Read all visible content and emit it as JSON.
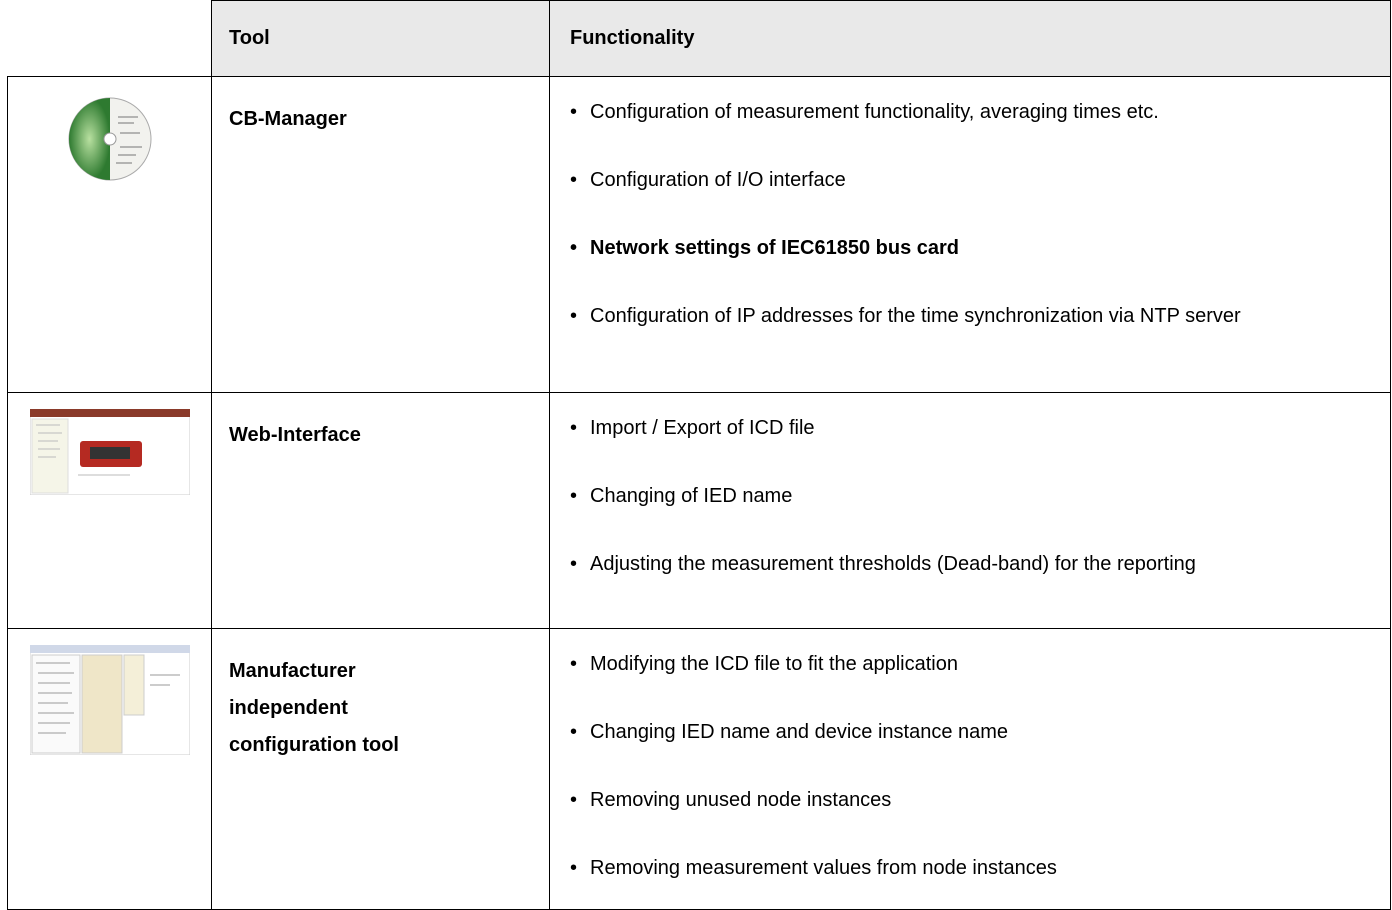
{
  "header": {
    "columns": [
      "Tool",
      "Functionality"
    ]
  },
  "rows": [
    {
      "tool": "CB-Manager",
      "items": [
        "Configuration of measurement functionality, averaging times etc.",
        "Configuration of I/O interface",
        "Network settings of IEC61850 bus card",
        "Configuration of IP addresses for the time synchronization via NTP server"
      ]
    },
    {
      "tool": "Web-Interface",
      "items": [
        "Import / Export of ICD file",
        "Changing of IED name",
        "Adjusting the measurement thresholds (Dead-band) for the reporting"
      ]
    },
    {
      "tool": "Manufacturer independent configuration tool",
      "items": [
        "Modifying the ICD file to fit the application",
        "Changing IED name and device instance name",
        "Removing unused node instances",
        "Removing measurement values from node instances"
      ]
    }
  ]
}
